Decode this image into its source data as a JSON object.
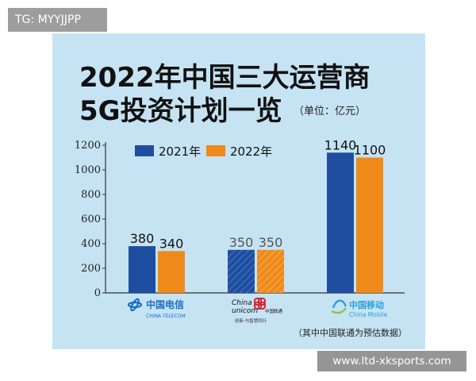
{
  "badges": {
    "top_left": "TG: MYYJJPP",
    "bottom_right": "www.ltd-xksports.com"
  },
  "title": {
    "line1": "2022年中国三大运营商",
    "line2": "5G投资计划一览",
    "unit": "（单位：亿元）"
  },
  "footnote": "（其中中国联通为预估数据）",
  "colors": {
    "panel_bg": "#c5e3f3",
    "series_2021": "#1f4ea1",
    "series_2022": "#ef8a1a",
    "china_telecom": "#1b6fc4",
    "china_unicom": "#d6232f",
    "china_mobile": "#2aa1d9"
  },
  "logos": {
    "china_telecom": {
      "cn": "中国电信",
      "en": "CHINA TELECOM"
    },
    "china_unicom": {
      "cn": "中国联通",
      "en1": "China",
      "en2": "unicom",
      "tagline": "创新·与智慧同行"
    },
    "china_mobile": {
      "cn": "中国移动",
      "en": "China Mobile"
    }
  },
  "chart_data": {
    "type": "bar",
    "title": "2022年中国三大运营商 5G投资计划一览",
    "categories": [
      "中国电信",
      "中国联通",
      "中国移动"
    ],
    "series": [
      {
        "name": "2021年",
        "values": [
          380,
          350,
          1140
        ]
      },
      {
        "name": "2022年",
        "values": [
          340,
          350,
          1100
        ]
      }
    ],
    "data_labels": [
      [
        "380",
        "350",
        "1140"
      ],
      [
        "340",
        "350",
        "1100"
      ]
    ],
    "ylim": [
      0,
      1200
    ],
    "yticks": [
      0,
      200,
      400,
      600,
      800,
      1000,
      1200
    ],
    "legend_position": "top-left",
    "grid": false
  }
}
